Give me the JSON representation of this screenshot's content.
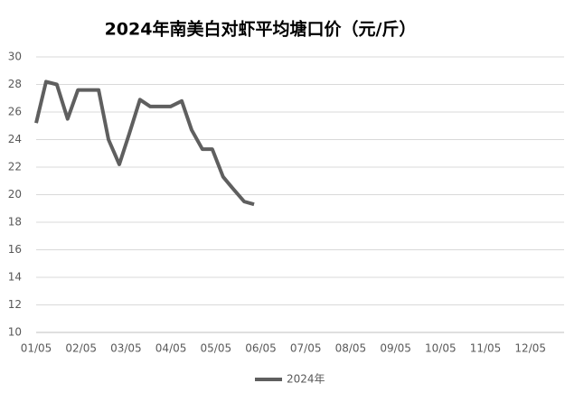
{
  "chart_data": {
    "type": "line",
    "title": "2024年南美白对虾平均塘口价（元/斤）",
    "x": [
      0,
      0.22,
      0.46,
      0.7,
      0.93,
      1.17,
      1.39,
      1.61,
      1.85,
      2.07,
      2.31,
      2.54,
      2.78,
      2.99,
      3.24,
      3.46,
      3.7,
      3.92,
      4.16,
      4.39,
      4.63,
      4.85
    ],
    "series": [
      {
        "name": "2024年",
        "color": "#5f5f5f",
        "values": [
          25.2,
          28.2,
          28.0,
          25.5,
          27.6,
          27.6,
          27.6,
          24.0,
          22.2,
          24.4,
          26.9,
          26.4,
          26.4,
          26.4,
          26.8,
          24.7,
          23.3,
          23.3,
          21.3,
          20.4,
          19.5,
          19.3
        ]
      }
    ],
    "xlim": [
      0,
      11.77
    ],
    "xticks": [
      {
        "value": 0,
        "label": "01/05"
      },
      {
        "value": 1,
        "label": "02/05"
      },
      {
        "value": 2,
        "label": "03/05"
      },
      {
        "value": 3,
        "label": "04/05"
      },
      {
        "value": 4,
        "label": "05/05"
      },
      {
        "value": 5,
        "label": "06/05"
      },
      {
        "value": 6,
        "label": "07/05"
      },
      {
        "value": 7,
        "label": "08/05"
      },
      {
        "value": 8,
        "label": "09/05"
      },
      {
        "value": 9,
        "label": "10/05"
      },
      {
        "value": 10,
        "label": "11/05"
      },
      {
        "value": 11,
        "label": "12/05"
      }
    ],
    "ylim": [
      10,
      30
    ],
    "yticks": [
      10,
      12,
      14,
      16,
      18,
      20,
      22,
      24,
      26,
      28,
      30
    ],
    "grid": true,
    "legend": "bottom"
  }
}
